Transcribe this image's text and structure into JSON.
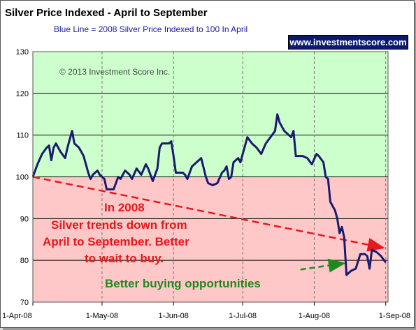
{
  "title": "Silver Price Indexed - April to September",
  "subtitle": "Blue Line =  2008 Silver Price Indexed to 100 In April",
  "badge": "www.investmentscore.com",
  "copyright": "© 2013 Investment Score Inc.",
  "colors": {
    "above_zone": "#ccffcc",
    "below_zone": "#ffc8c8",
    "line": "#1a1a6e",
    "red_text": "#e8171b",
    "green_text": "#1e8a1e"
  },
  "chart_data": {
    "type": "line",
    "ylim": [
      70,
      130
    ],
    "yticks": [
      "70",
      "80",
      "90",
      "100",
      "110",
      "120",
      "130"
    ],
    "xticks": [
      "1-Apr-08",
      "1-May-08",
      "1-Jun-08",
      "1-Jul-08",
      "1-Aug-08",
      "1-Sep-08"
    ],
    "xlim": [
      "2008-04-01",
      "2008-09-02"
    ],
    "baseline": 100,
    "series": [
      {
        "values": [
          [
            "2008-04-01",
            100
          ],
          [
            "2008-04-03",
            103
          ],
          [
            "2008-04-05",
            105.5
          ],
          [
            "2008-04-07",
            107
          ],
          [
            "2008-04-08",
            107.5
          ],
          [
            "2008-04-09",
            104
          ],
          [
            "2008-04-10",
            107
          ],
          [
            "2008-04-11",
            108
          ],
          [
            "2008-04-13",
            106
          ],
          [
            "2008-04-15",
            104.5
          ],
          [
            "2008-04-16",
            107
          ],
          [
            "2008-04-18",
            111
          ],
          [
            "2008-04-19",
            108
          ],
          [
            "2008-04-21",
            107
          ],
          [
            "2008-04-23",
            105
          ],
          [
            "2008-04-25",
            101
          ],
          [
            "2008-04-26",
            99.5
          ],
          [
            "2008-04-27",
            100.5
          ],
          [
            "2008-04-29",
            101.5
          ],
          [
            "2008-04-30",
            100.5
          ],
          [
            "2008-05-02",
            99.5
          ],
          [
            "2008-05-03",
            97
          ],
          [
            "2008-05-06",
            97
          ],
          [
            "2008-05-08",
            100
          ],
          [
            "2008-05-09",
            99.5
          ],
          [
            "2008-05-11",
            101.5
          ],
          [
            "2008-05-13",
            100.5
          ],
          [
            "2008-05-14",
            99.5
          ],
          [
            "2008-05-16",
            102
          ],
          [
            "2008-05-18",
            100.5
          ],
          [
            "2008-05-20",
            103
          ],
          [
            "2008-05-21",
            102
          ],
          [
            "2008-05-23",
            99
          ],
          [
            "2008-05-25",
            102
          ],
          [
            "2008-05-26",
            107
          ],
          [
            "2008-05-27",
            108
          ],
          [
            "2008-05-30",
            108
          ],
          [
            "2008-05-31",
            108.5
          ],
          [
            "2008-06-01",
            105
          ],
          [
            "2008-06-02",
            101
          ],
          [
            "2008-06-05",
            101
          ],
          [
            "2008-06-06",
            100.5
          ],
          [
            "2008-06-07",
            99.5
          ],
          [
            "2008-06-09",
            102.5
          ],
          [
            "2008-06-11",
            103.5
          ],
          [
            "2008-06-13",
            104.5
          ],
          [
            "2008-06-15",
            100
          ],
          [
            "2008-06-16",
            98.5
          ],
          [
            "2008-06-18",
            98
          ],
          [
            "2008-06-20",
            98.5
          ],
          [
            "2008-06-22",
            101
          ],
          [
            "2008-06-23",
            101.5
          ],
          [
            "2008-06-24",
            102.5
          ],
          [
            "2008-06-25",
            99.5
          ],
          [
            "2008-06-26",
            100
          ],
          [
            "2008-06-27",
            103.5
          ],
          [
            "2008-06-29",
            104.5
          ],
          [
            "2008-06-30",
            103.5
          ],
          [
            "2008-07-01",
            105.5
          ],
          [
            "2008-07-03",
            109.5
          ],
          [
            "2008-07-05",
            108
          ],
          [
            "2008-07-07",
            107
          ],
          [
            "2008-07-09",
            105.5
          ],
          [
            "2008-07-11",
            108
          ],
          [
            "2008-07-13",
            109.5
          ],
          [
            "2008-07-15",
            111
          ],
          [
            "2008-07-16",
            115
          ],
          [
            "2008-07-17",
            113
          ],
          [
            "2008-07-19",
            111
          ],
          [
            "2008-07-21",
            110
          ],
          [
            "2008-07-22",
            109.5
          ],
          [
            "2008-07-23",
            111
          ],
          [
            "2008-07-24",
            105
          ],
          [
            "2008-07-27",
            105
          ],
          [
            "2008-07-29",
            104.5
          ],
          [
            "2008-07-31",
            103
          ],
          [
            "2008-08-02",
            105.5
          ],
          [
            "2008-08-03",
            105
          ],
          [
            "2008-08-05",
            103.5
          ],
          [
            "2008-08-06",
            100
          ],
          [
            "2008-08-07",
            99.5
          ],
          [
            "2008-08-08",
            94
          ],
          [
            "2008-08-10",
            92
          ],
          [
            "2008-08-11",
            90
          ],
          [
            "2008-08-12",
            86.5
          ],
          [
            "2008-08-13",
            88
          ],
          [
            "2008-08-14",
            85.5
          ],
          [
            "2008-08-15",
            76.5
          ],
          [
            "2008-08-17",
            77.5
          ],
          [
            "2008-08-19",
            78
          ],
          [
            "2008-08-21",
            81.5
          ],
          [
            "2008-08-23",
            81.5
          ],
          [
            "2008-08-24",
            81
          ],
          [
            "2008-08-25",
            78
          ],
          [
            "2008-08-26",
            82.5
          ],
          [
            "2008-08-28",
            82
          ],
          [
            "2008-08-30",
            81
          ],
          [
            "2008-09-01",
            79.5
          ]
        ]
      }
    ],
    "annotations": [
      {
        "text": "In 2008",
        "color": "red"
      },
      {
        "text": "Silver trends down from",
        "color": "red"
      },
      {
        "text": "April to September.  Better",
        "color": "red"
      },
      {
        "text": "to wait to buy.",
        "color": "red"
      },
      {
        "text": "Better buying opportunities",
        "color": "green"
      }
    ],
    "trend_arrow": {
      "from": [
        "2008-04-01",
        100
      ],
      "to": [
        "2008-08-31",
        83
      ]
    },
    "buy_arrow": {
      "from": [
        "2008-07-26",
        77.8
      ],
      "to": [
        "2008-08-14",
        79.3
      ]
    }
  }
}
